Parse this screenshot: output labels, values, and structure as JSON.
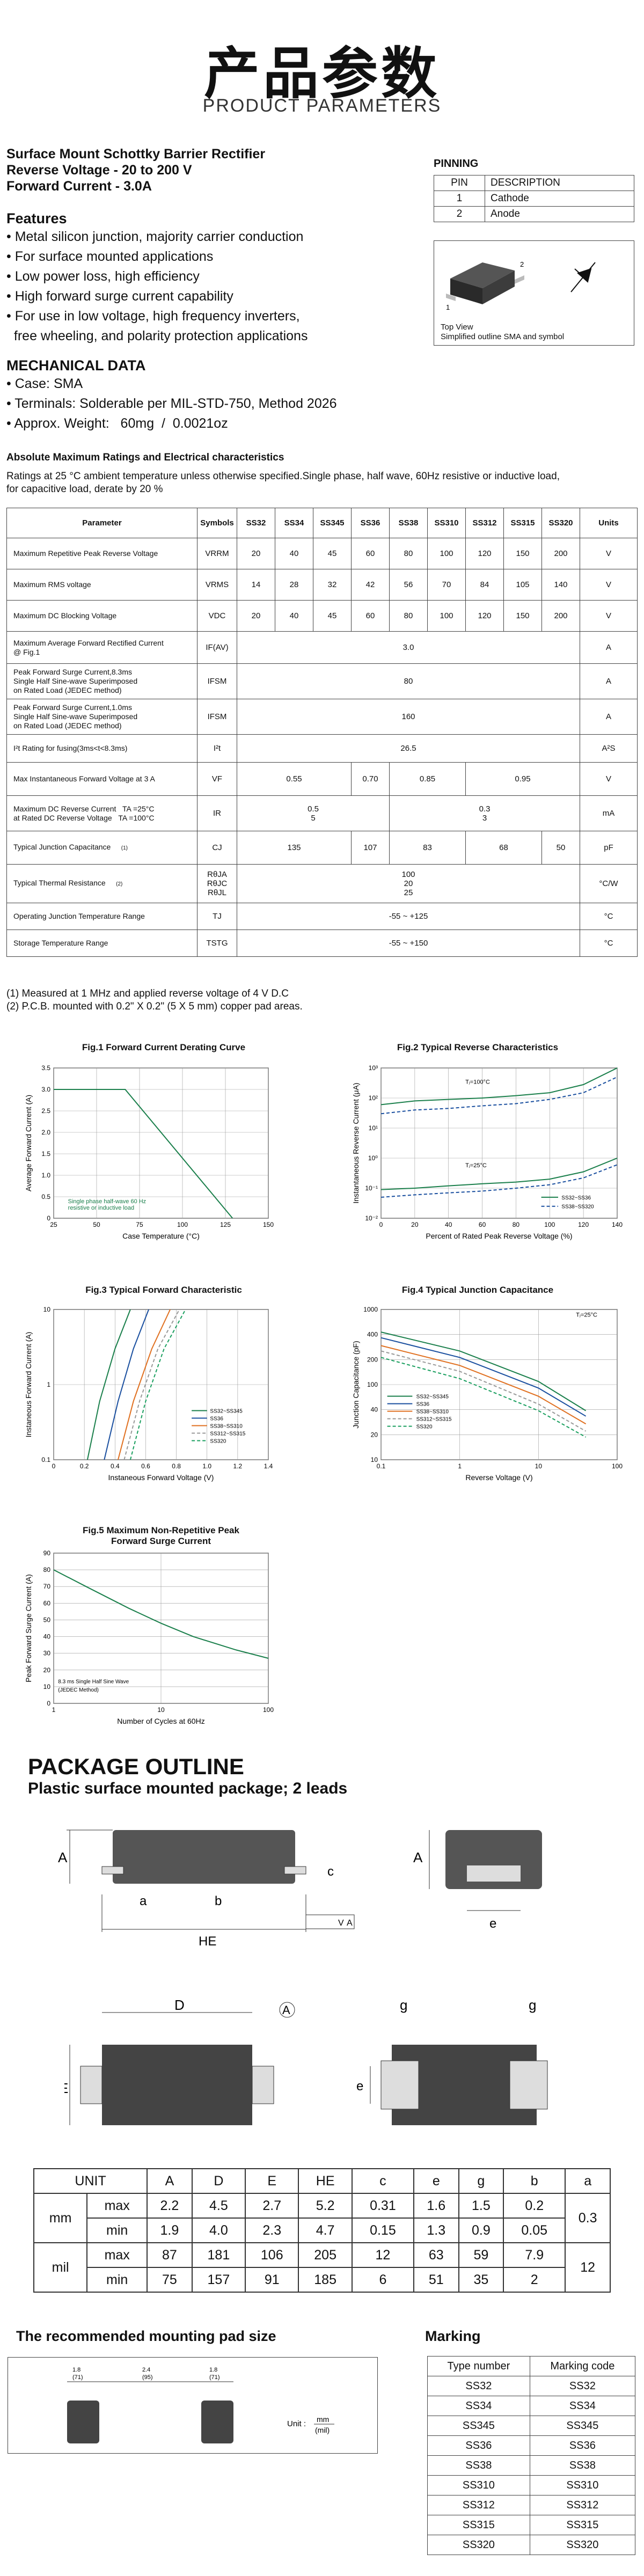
{
  "header": {
    "title_cn": "产品参数",
    "title_en": "PRODUCT PARAMETERS"
  },
  "product": {
    "line1": "Surface Mount Schottky Barrier Rectifier",
    "line2": "Reverse Voltage - 20 to 200 V",
    "line3": "Forward Current - 3.0A"
  },
  "features": {
    "title": "Features",
    "items": [
      "• Metal silicon junction, majority carrier conduction",
      "• For surface mounted applications",
      "• Low power loss, high efficiency",
      "• High forward surge current capability",
      "• For use in low voltage, high frequency inverters,",
      "  free wheeling, and polarity protection applications"
    ]
  },
  "mechanical": {
    "title": "MECHANICAL DATA",
    "items": [
      "• Case: SMA",
      "• Terminals: Solderable per MIL-STD-750, Method 2026",
      "• Approx. Weight:   60mg  /  0.0021oz"
    ]
  },
  "pinning": {
    "title": "PINNING",
    "headers": [
      "PIN",
      "DESCRIPTION"
    ],
    "rows": [
      [
        "1",
        "Cathode"
      ],
      [
        "2",
        "Anode"
      ]
    ],
    "view1": "Top View",
    "view2": "Simplified outline SMA and symbol",
    "label1": "1",
    "label2": "2"
  },
  "ratings": {
    "title": "Absolute Maximum Ratings and Electrical characteristics",
    "note1": "Ratings at  25 °C ambient temperature unless otherwise specified.Single phase, half wave, 60Hz resistive or inductive load,",
    "note2": "for capacitive load, derate by 20 %"
  },
  "table": {
    "headers": [
      "Parameter",
      "Symbols",
      "SS32",
      "SS34",
      "SS345",
      "SS36",
      "SS38",
      "SS310",
      "SS312",
      "SS315",
      "SS320",
      "Units"
    ],
    "r1": {
      "p": "Maximum Repetitive Peak Reverse Voltage",
      "s": "VRRM",
      "v": [
        "20",
        "40",
        "45",
        "60",
        "80",
        "100",
        "120",
        "150",
        "200"
      ],
      "u": "V"
    },
    "r2": {
      "p": "Maximum RMS voltage",
      "s": "VRMS",
      "v": [
        "14",
        "28",
        "32",
        "42",
        "56",
        "70",
        "84",
        "105",
        "140"
      ],
      "u": "V"
    },
    "r3": {
      "p": "Maximum DC Blocking Voltage",
      "s": "VDC",
      "v": [
        "20",
        "40",
        "45",
        "60",
        "80",
        "100",
        "120",
        "150",
        "200"
      ],
      "u": "V"
    },
    "r4": {
      "p1": "Maximum Average Forward Rectified Current",
      "p2": "@ Fig.1",
      "s": "IF(AV)",
      "v": "3.0",
      "u": "A"
    },
    "r5": {
      "p1": "Peak Forward Surge Current,8.3ms",
      "p2": "Single Half Sine-wave Superimposed",
      "p3": "on Rated Load (JEDEC method)",
      "s": "IFSM",
      "v": "80",
      "u": "A"
    },
    "r6": {
      "p1": "Peak Forward Surge Current,1.0ms",
      "p2": "Single Half Sine-wave Superimposed",
      "p3": "on Rated Load (JEDEC method)",
      "s": "IFSM",
      "v": "160",
      "u": "A"
    },
    "r7": {
      "p": "I²t Rating for fusing(3ms<t<8.3ms)",
      "s": "I²t",
      "v": "26.5",
      "u": "A²S"
    },
    "r8": {
      "p": "Max Instantaneous Forward Voltage at 3 A",
      "s": "VF",
      "v": [
        "0.55",
        "0.70",
        "0.85",
        "0.95"
      ],
      "u": "V"
    },
    "r9": {
      "p1": "Maximum DC Reverse Current",
      "c1": "TA =25°C",
      "p2": "at Rated DC Reverse Voltage",
      "c2": "TA =100°C",
      "s": "IR",
      "v1": [
        "0.5",
        "0.3"
      ],
      "v2": [
        "5",
        "3"
      ],
      "u": "mA"
    },
    "r10": {
      "p": "Typical Junction Capacitance",
      "n": "(1)",
      "s": "CJ",
      "v": [
        "135",
        "107",
        "83",
        "68",
        "50"
      ],
      "u": "pF"
    },
    "r11": {
      "p": "Typical Thermal Resistance",
      "n": "(2)",
      "s": [
        "RθJA",
        "RθJC",
        "RθJL"
      ],
      "v": [
        "100",
        "20",
        "25"
      ],
      "u": "°C/W"
    },
    "r12": {
      "p": "Operating Junction Temperature Range",
      "s": "TJ",
      "v": "-55 ~ +125",
      "u": "°C"
    },
    "r13": {
      "p": "Storage Temperature Range",
      "s": "TSTG",
      "v": "-55 ~ +150",
      "u": "°C"
    }
  },
  "notes": [
    "(1)  Measured at 1 MHz and applied reverse voltage of 4 V D.C",
    "(2)  P.C.B. mounted with 0.2\" X 0.2\" (5 X 5 mm) copper pad areas."
  ],
  "chart_data": [
    {
      "type": "line",
      "title": "Fig.1  Forward Current Derating Curve",
      "xlabel": "Case Temperature (°C)",
      "ylabel": "Average Forward Current  (A)",
      "xlim": [
        0,
        150
      ],
      "ylim": [
        0,
        3.5
      ],
      "x_ticks": [
        "25",
        "50",
        "75",
        "100",
        "125",
        "150"
      ],
      "y_ticks": [
        "0",
        "0.5",
        "1.0",
        "1.5",
        "2.0",
        "2.5",
        "3.0",
        "3.5"
      ],
      "series": [
        {
          "x": [
            0,
            50,
            125
          ],
          "y": [
            3.0,
            3.0,
            0
          ]
        }
      ],
      "annotation": [
        "Single phase half-wave 60 Hz",
        "resistive or inductive load"
      ]
    },
    {
      "type": "line",
      "title": "Fig.2  Typical Reverse Characteristics",
      "xlabel": "Percent of Rated Peak Reverse Voltage  (%)",
      "ylabel": "Instantaneous  Reverse  Current (μA)",
      "log_y": true,
      "x_ticks": [
        "0",
        "20",
        "40",
        "60",
        "80",
        "100",
        "120",
        "140"
      ],
      "y_ticks": [
        "10⁻²",
        "10⁻¹",
        "10⁰",
        "10¹",
        "10²",
        "10³"
      ],
      "annotations": [
        "Tⱼ=100°C",
        "Tⱼ=25°C"
      ],
      "legend": [
        "SS32~SS36",
        "SS38~SS320"
      ],
      "series": [
        {
          "x": [
            0,
            20,
            40,
            60,
            80,
            100,
            120,
            140
          ],
          "y": [
            60,
            80,
            90,
            100,
            120,
            150,
            280,
            1000
          ]
        },
        {
          "x": [
            0,
            20,
            40,
            60,
            80,
            100,
            120,
            140
          ],
          "y": [
            30,
            40,
            45,
            55,
            65,
            90,
            150,
            500
          ]
        },
        {
          "x": [
            0,
            20,
            40,
            60,
            80,
            100,
            120,
            140
          ],
          "y": [
            0.09,
            0.1,
            0.12,
            0.14,
            0.16,
            0.2,
            0.35,
            1.0
          ]
        },
        {
          "x": [
            0,
            20,
            40,
            60,
            80,
            100,
            120,
            140
          ],
          "y": [
            0.05,
            0.06,
            0.07,
            0.08,
            0.1,
            0.13,
            0.22,
            0.6
          ]
        }
      ]
    },
    {
      "type": "line",
      "title": "Fig.3  Typical Forward Characteristic",
      "xlabel": "Instaneous Forward Voltage (V)",
      "ylabel": "Instaneous Forward Current (A)",
      "log_y": true,
      "x_ticks": [
        "0",
        "0.2",
        "0.4",
        "0.6",
        "0.8",
        "1.0",
        "1.2",
        "1.4"
      ],
      "y_ticks": [
        "0.1",
        "1",
        "10"
      ],
      "legend": [
        "SS32~SS345",
        "SS36",
        "SS38~SS310",
        "SS312~SS315",
        "SS320"
      ],
      "series": [
        {
          "x": [
            0.22,
            0.3,
            0.4,
            0.5
          ],
          "y": [
            0.1,
            0.6,
            3,
            10
          ]
        },
        {
          "x": [
            0.33,
            0.42,
            0.52,
            0.62
          ],
          "y": [
            0.1,
            0.6,
            3,
            10
          ]
        },
        {
          "x": [
            0.42,
            0.52,
            0.64,
            0.76
          ],
          "y": [
            0.1,
            0.6,
            3,
            10
          ]
        },
        {
          "x": [
            0.46,
            0.56,
            0.68,
            0.82
          ],
          "y": [
            0.1,
            0.6,
            3,
            10
          ]
        },
        {
          "x": [
            0.5,
            0.6,
            0.72,
            0.86
          ],
          "y": [
            0.1,
            0.6,
            3,
            10
          ]
        }
      ]
    },
    {
      "type": "line",
      "title": "Fig.4  Typical Junction Capacitance",
      "xlabel": "Reverse  Voltage  (V)",
      "ylabel": "Junction  Capacitance (pF)",
      "log_x": true,
      "log_y": true,
      "x_ticks": [
        "0.1",
        "1",
        "10",
        "100"
      ],
      "y_ticks": [
        "10",
        "20",
        "40",
        "100",
        "200",
        "400",
        "1000"
      ],
      "annotation": "Tⱼ=25°C",
      "legend": [
        "SS32~SS345",
        "SS36",
        "SS38~SS310",
        "SS312~SS315",
        "SS320"
      ],
      "series": [
        {
          "x": [
            0.1,
            1,
            10,
            40
          ],
          "y": [
            500,
            280,
            110,
            45
          ]
        },
        {
          "x": [
            0.1,
            1,
            10,
            40
          ],
          "y": [
            420,
            230,
            90,
            38
          ]
        },
        {
          "x": [
            0.1,
            1,
            10,
            40
          ],
          "y": [
            330,
            180,
            70,
            30
          ]
        },
        {
          "x": [
            0.1,
            1,
            10,
            40
          ],
          "y": [
            280,
            150,
            55,
            24
          ]
        },
        {
          "x": [
            0.1,
            1,
            10,
            40
          ],
          "y": [
            230,
            120,
            45,
            20
          ]
        }
      ]
    },
    {
      "type": "line",
      "title": "Fig.5  Maximum Non-Repetitive Peak Forward Surge Current",
      "xlabel": "Number of Cycles at 60Hz",
      "ylabel": "Peak Forward Surge Current (A)",
      "log_x": true,
      "x_ticks": [
        "1",
        "10",
        "100"
      ],
      "y_ticks": [
        "0",
        "10",
        "20",
        "30",
        "40",
        "50",
        "60",
        "70",
        "80",
        "90"
      ],
      "annotation": [
        "8.3 ms Single Half Sine Wave",
        "(JEDEC Method)"
      ],
      "series": [
        {
          "x": [
            1,
            2,
            5,
            10,
            20,
            50,
            100
          ],
          "y": [
            80,
            70,
            57,
            48,
            40,
            32,
            27
          ]
        }
      ]
    }
  ],
  "fig5_title": [
    "Fig.5  Maximum Non-Repetitive Peak",
    "Forward Surge Current"
  ],
  "outline": {
    "title": "PACKAGE  OUTLINE",
    "subtitle": "Plastic surface mounted package; 2 leads",
    "labels": {
      "A": "A",
      "a": "a",
      "b": "b",
      "c": "c",
      "He": "HE",
      "e": "e",
      "D": "D",
      "Dref": "A",
      "E": "E",
      "g": "g",
      "gv": "V",
      "gv2": "A"
    }
  },
  "dims": {
    "headers": [
      "UNIT",
      "",
      "A",
      "D",
      "E",
      "HE",
      "c",
      "e",
      "g",
      "b",
      "a"
    ],
    "mm": {
      "unit": "mm",
      "max": [
        "2.2",
        "4.5",
        "2.7",
        "5.2",
        "0.31",
        "1.6",
        "1.5",
        "0.2"
      ],
      "min": [
        "1.9",
        "4.0",
        "2.3",
        "4.7",
        "0.15",
        "1.3",
        "0.9",
        "0.05"
      ],
      "a": "0.3"
    },
    "mil": {
      "unit": "mil",
      "max": [
        "87",
        "181",
        "106",
        "205",
        "12",
        "63",
        "59",
        "7.9"
      ],
      "min": [
        "75",
        "157",
        "91",
        "185",
        "6",
        "51",
        "35",
        "2"
      ],
      "a": "12"
    },
    "max": "max",
    "min": "min"
  },
  "pad": {
    "title": "The recommended mounting pad size",
    "d1": "1.8",
    "d1b": "(71)",
    "d2": "2.4",
    "d2b": "(95)",
    "d3": "1.8",
    "d3b": "(71)",
    "unit": "Unit :",
    "u1": "mm",
    "u2": "(mil)"
  },
  "marking": {
    "title": "Marking",
    "headers": [
      "Type number",
      "Marking code"
    ],
    "rows": [
      [
        "SS32",
        "SS32"
      ],
      [
        "SS34",
        "SS34"
      ],
      [
        "SS345",
        "SS345"
      ],
      [
        "SS36",
        "SS36"
      ],
      [
        "SS38",
        "SS38"
      ],
      [
        "SS310",
        "SS310"
      ],
      [
        "SS312",
        "SS312"
      ],
      [
        "SS315",
        "SS315"
      ],
      [
        "SS320",
        "SS320"
      ]
    ]
  }
}
